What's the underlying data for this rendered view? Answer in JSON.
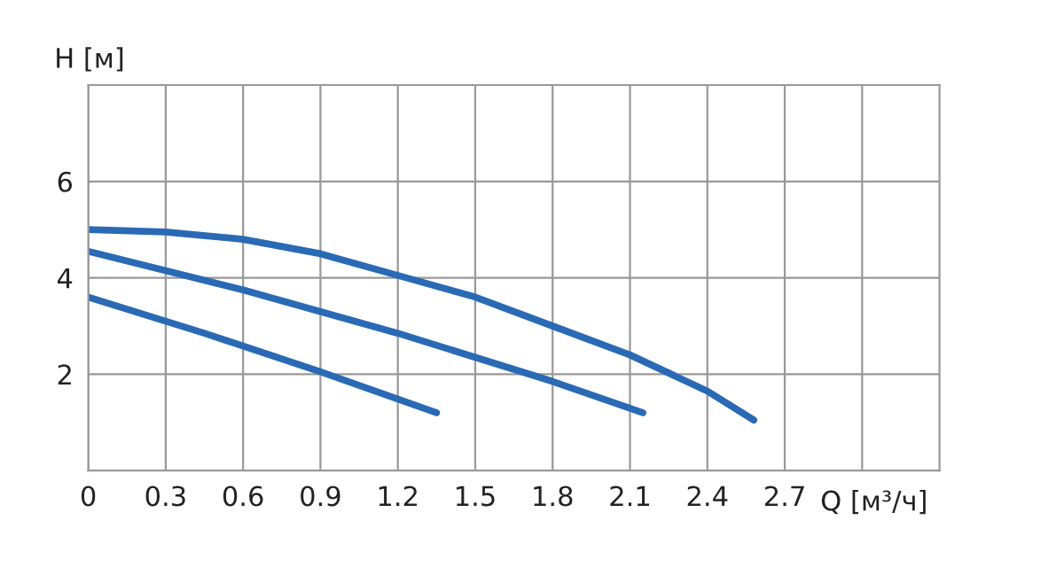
{
  "chart_data": {
    "type": "line",
    "xlabel": "Q [м³/ч]",
    "ylabel": "H [м]",
    "series": [
      {
        "color": "#2a6ab5",
        "x": [
          0,
          0.3,
          0.6,
          0.9,
          1.2,
          1.5,
          1.8,
          2.1,
          2.4,
          2.58
        ],
        "values": [
          5.0,
          4.95,
          4.8,
          4.5,
          4.05,
          3.6,
          3.0,
          2.4,
          1.65,
          1.05
        ]
      },
      {
        "color": "#2a6ab5",
        "x": [
          0,
          0.6,
          1.2,
          1.8,
          2.15
        ],
        "values": [
          4.55,
          3.75,
          2.85,
          1.85,
          1.2
        ]
      },
      {
        "color": "#2a6ab5",
        "x": [
          0,
          0.45,
          0.9,
          1.35
        ],
        "values": [
          3.6,
          2.85,
          2.05,
          1.2
        ]
      }
    ],
    "xlim": [
      0,
      3.3
    ],
    "ylim": [
      0,
      8
    ],
    "xticks": [
      0,
      0.3,
      0.6,
      0.9,
      1.2,
      1.5,
      1.8,
      2.1,
      2.4,
      2.7,
      {
        "value": 3.0,
        "label": null
      }
    ],
    "yticks": [
      {
        "value": 0,
        "label": null
      },
      2,
      4,
      6
    ],
    "grid": true,
    "legend": false,
    "marker": "none",
    "line_style": "solid"
  }
}
